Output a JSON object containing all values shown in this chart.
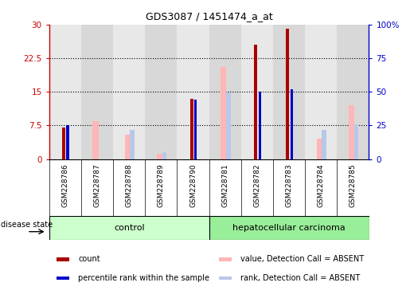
{
  "title": "GDS3087 / 1451474_a_at",
  "samples": [
    "GSM228786",
    "GSM228787",
    "GSM228788",
    "GSM228789",
    "GSM228790",
    "GSM228781",
    "GSM228782",
    "GSM228783",
    "GSM228784",
    "GSM228785"
  ],
  "count": [
    7.0,
    0,
    0,
    0,
    13.5,
    0,
    25.5,
    29.0,
    0,
    0
  ],
  "percentile_rank": [
    7.6,
    0,
    0,
    0,
    13.3,
    0,
    15.1,
    15.6,
    0,
    0
  ],
  "absent_value": [
    0,
    8.5,
    5.5,
    1.2,
    0,
    20.5,
    0,
    0,
    4.5,
    12.0
  ],
  "absent_rank": [
    0,
    0,
    6.5,
    1.5,
    0,
    14.8,
    0,
    0,
    6.5,
    7.8
  ],
  "count_color": "#aa0000",
  "percentile_color": "#0000cc",
  "absent_value_color": "#ffb6b6",
  "absent_rank_color": "#b8c8e8",
  "ylim_left": [
    0,
    30
  ],
  "ylim_right": [
    0,
    100
  ],
  "yticks_left": [
    0,
    7.5,
    15,
    22.5,
    30
  ],
  "yticks_right": [
    0,
    25,
    50,
    75,
    100
  ],
  "ytick_labels_left": [
    "0",
    "7.5",
    "15",
    "22.5",
    "30"
  ],
  "ytick_labels_right": [
    "0",
    "25",
    "50",
    "75",
    "100%"
  ],
  "control_n": 5,
  "disease_n": 5,
  "control_label": "control",
  "disease_label": "hepatocellular carcinoma",
  "disease_state_label": "disease state",
  "control_color": "#ccffcc",
  "disease_color": "#99ee99",
  "left_axis_color": "#cc0000",
  "right_axis_color": "#0000cc",
  "bg_odd": "#e0e0e0",
  "bg_even": "#d0d0d0",
  "plot_bg": "#ffffff"
}
